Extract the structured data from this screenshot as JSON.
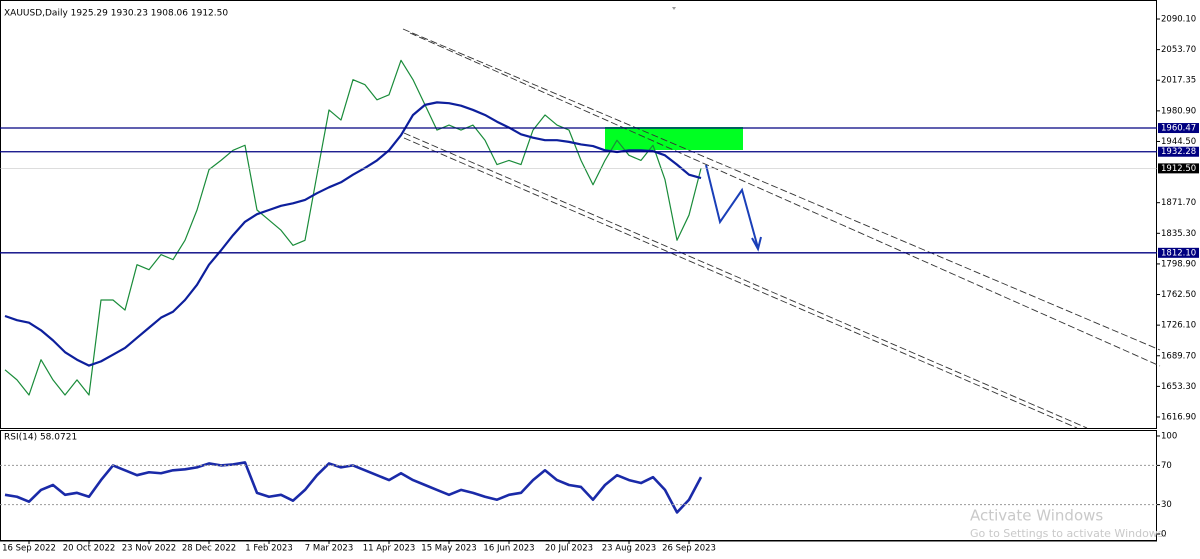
{
  "chart_data": [
    {
      "type": "line",
      "title": "XAUUSD,Daily 1925.29 1930.23 1908.06 1912.50",
      "categories": [
        null,
        null,
        "16 Sep 2022",
        null,
        null,
        null,
        null,
        "20 Oct 2022",
        null,
        null,
        null,
        null,
        "23 Nov 2022",
        null,
        null,
        null,
        null,
        "28 Dec 2022",
        null,
        null,
        null,
        null,
        "1 Feb 2023",
        null,
        null,
        null,
        null,
        "7 Mar 2023",
        null,
        null,
        null,
        null,
        "11 Apr 2023",
        null,
        null,
        null,
        null,
        "15 May 2023",
        null,
        null,
        null,
        null,
        "16 Jun 2023",
        null,
        null,
        null,
        null,
        "20 Jul 2023",
        null,
        null,
        null,
        null,
        "23 Aug 2023",
        null,
        null,
        null,
        null,
        "26 Sep 2023",
        null
      ],
      "series": [
        {
          "color": "#1a8c3a",
          "width": 1.2,
          "values": [
            1673,
            1661,
            1643,
            1685,
            1661,
            1643,
            1661,
            1643,
            1756,
            1756,
            1744,
            1798,
            1792,
            1810,
            1804,
            1827,
            1863,
            1911,
            1922,
            1934,
            1940,
            1863,
            1851,
            1839,
            1821,
            1827,
            1905,
            1982,
            1970,
            2018,
            2012,
            1994,
            2000,
            2041,
            2018,
            1988,
            1958,
            1964,
            1958,
            1964,
            1946,
            1917,
            1922,
            1917,
            1958,
            1976,
            1964,
            1958,
            1922,
            1893,
            1922,
            1946,
            1928,
            1922,
            1940,
            1899,
            1827,
            1857,
            1912.5
          ]
        },
        {
          "color": "#0d1f9c",
          "width": 2.2,
          "values": [
            1737,
            1732,
            1729,
            1720,
            1708,
            1694,
            1685,
            1678,
            1683,
            1691,
            1699,
            1711,
            1723,
            1735,
            1742,
            1756,
            1774,
            1798,
            1815,
            1833,
            1849,
            1858,
            1863,
            1868,
            1871,
            1875,
            1883,
            1890,
            1896,
            1905,
            1913,
            1922,
            1934,
            1952,
            1976,
            1988,
            1991,
            1990,
            1987,
            1982,
            1976,
            1968,
            1961,
            1953,
            1949,
            1946,
            1946,
            1944,
            1941,
            1939,
            1934,
            1932,
            1934,
            1934,
            1933,
            1928,
            1917,
            1905,
            1901
          ]
        }
      ],
      "ylim": [
        1603.8,
        2103.2
      ],
      "yticks": [
        {
          "value": 2090.1,
          "label": "2090.10"
        },
        {
          "value": 2053.7,
          "label": "2053.70"
        },
        2017.35,
        {
          "value": 1980.9,
          "label": "1980.90"
        },
        {
          "value": 1944.5,
          "label": "1944.50"
        },
        {
          "value": 1871.7,
          "label": "1871.70"
        },
        {
          "value": 1835.3,
          "label": "1835.30"
        },
        {
          "value": 1798.9,
          "label": "1798.90"
        },
        {
          "value": 1762.5,
          "label": "1762.50"
        },
        {
          "value": 1726.1,
          "label": "1726.10"
        },
        {
          "value": 1689.7,
          "label": "1689.70"
        },
        {
          "value": 1653.3,
          "label": "1653.30"
        },
        {
          "value": 1616.9,
          "label": "1616.90"
        }
      ],
      "hlines": [
        1960.47,
        1932.28,
        {
          "value": 1812.1,
          "label": "1812.10"
        }
      ],
      "hline_color": "#000080",
      "last_price": {
        "value": 1912.5,
        "label": "1912.50"
      }
    },
    {
      "type": "line",
      "title": "RSI(14) 58.0721",
      "series": [
        {
          "color": "#1a2aa8",
          "width": 2.6,
          "values": [
            40,
            38,
            33,
            45,
            50,
            40,
            42,
            38,
            55,
            70,
            65,
            60,
            63,
            62,
            65,
            66,
            68,
            72,
            70,
            71,
            73,
            42,
            38,
            40,
            34,
            45,
            60,
            72,
            68,
            70,
            65,
            60,
            55,
            62,
            55,
            50,
            45,
            40,
            45,
            42,
            38,
            35,
            40,
            42,
            55,
            65,
            55,
            50,
            48,
            35,
            50,
            60,
            55,
            52,
            58,
            45,
            22,
            35,
            58.0721
          ]
        }
      ],
      "ylim": [
        -6.1,
        106.1
      ],
      "yticks": [
        100,
        70,
        30,
        0
      ]
    }
  ],
  "overlay": {
    "line1": "Activate Windows",
    "line2": "Go to Settings to activate Windows."
  }
}
